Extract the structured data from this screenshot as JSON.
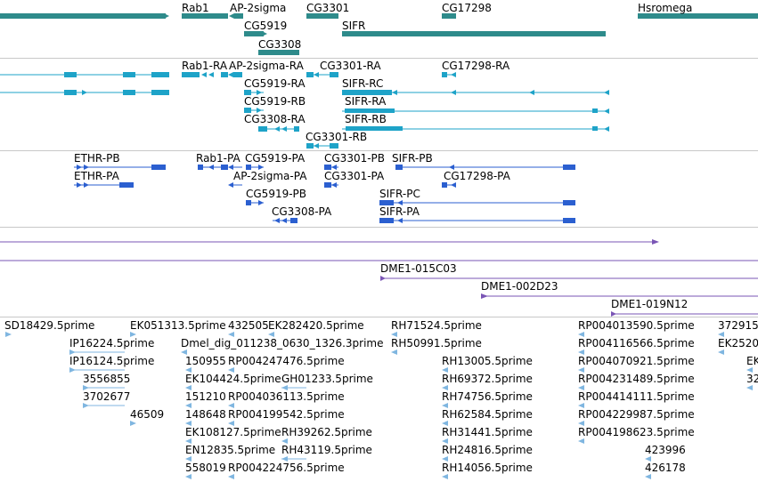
{
  "colors": {
    "gene": "#2e8b8b",
    "transcript": "#1ea3c8",
    "protein": "#2b5fd0",
    "clone": "#7a55b5",
    "est": "#7fb6e0",
    "separator": "#c8c8c8"
  },
  "genes": [
    "Rab1",
    "AP-2sigma",
    "CG3301",
    "CG17298",
    "Hsromega",
    "CG5919",
    "SIFR",
    "CG3308"
  ],
  "transcripts": [
    "Rab1-RA",
    "AP-2sigma-RA",
    "CG3301-RA",
    "CG17298-RA",
    "CG5919-RA",
    "SIFR-RC",
    "CG5919-RB",
    "SIFR-RA",
    "CG3308-RA",
    "SIFR-RB",
    "CG3301-RB"
  ],
  "proteins": [
    "ETHR-PB",
    "Rab1-PA",
    "CG5919-PA",
    "CG3301-PB",
    "SIFR-PB",
    "ETHR-PA",
    "AP-2sigma-PA",
    "CG3301-PA",
    "CG17298-PA",
    "CG5919-PB",
    "SIFR-PC",
    "CG3308-PA",
    "SIFR-PA"
  ],
  "clones": [
    "DME1-015C03",
    "DME1-002D23",
    "DME1-019N12"
  ],
  "ests": [
    "SD18429.5prime",
    "EK051313.5prime",
    "432505",
    "EK282420.5prime",
    "RH71524.5prime",
    "RP004013590.5prime",
    "372915",
    "IP16224.5prime",
    "Dmel_dig_011238_0630_1326.3prime",
    "RH50991.5prime",
    "RP004116566.5prime",
    "EK2520",
    "IP16124.5prime",
    "150955",
    "RP004247476.5prime",
    "RH13005.5prime",
    "RP004070921.5prime",
    "EK",
    "3556855",
    "EK104424.5prime",
    "GH01233.5prime",
    "RH69372.5prime",
    "RP004231489.5prime",
    "32",
    "3702677",
    "151210",
    "RP004036113.5prime",
    "RH74756.5prime",
    "RP004414111.5prime",
    "46509",
    "148648",
    "RP004199542.5prime",
    "RH62584.5prime",
    "RP004229987.5prime",
    "EK108127.5prime",
    "RH39262.5prime",
    "RH31441.5prime",
    "RP004198623.5prime",
    "EN12835.5prime",
    "RH43119.5prime",
    "RH24816.5prime",
    "423996",
    "558019",
    "RP004224756.5prime",
    "RH14056.5prime",
    "426178"
  ]
}
